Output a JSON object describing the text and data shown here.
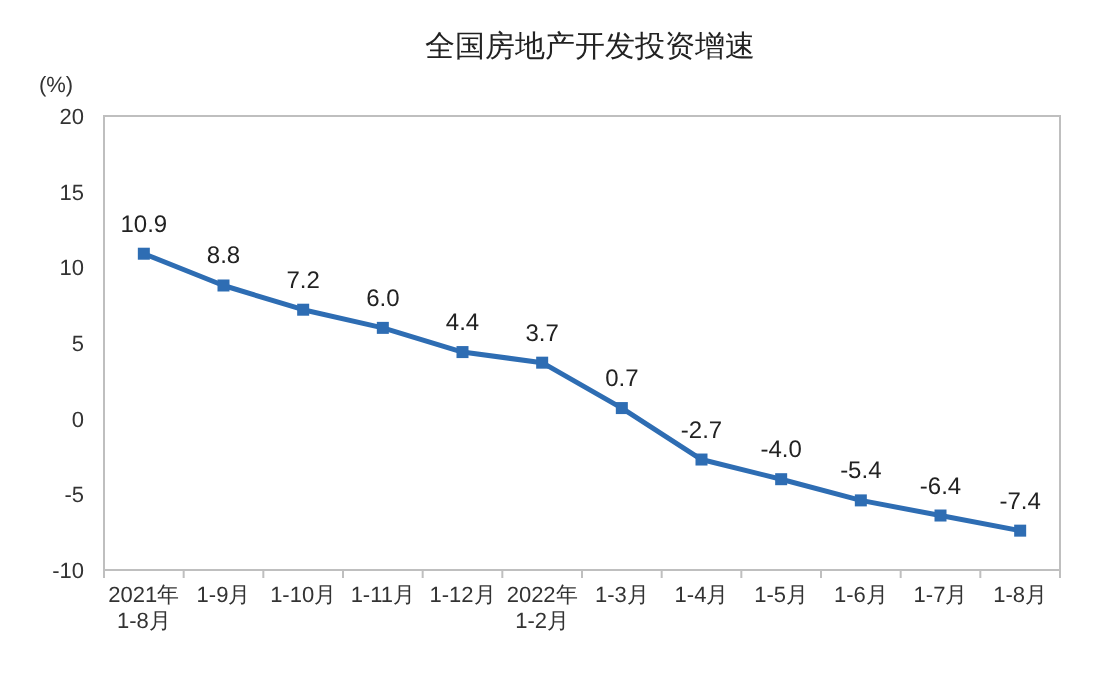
{
  "chart_data": {
    "type": "line",
    "title": "全国房地产开发投资增速",
    "ylabel": "(%)",
    "categories": [
      "2021年\n1-8月",
      "1-9月",
      "1-10月",
      "1-11月",
      "1-12月",
      "2022年\n1-2月",
      "1-3月",
      "1-4月",
      "1-5月",
      "1-6月",
      "1-7月",
      "1-8月"
    ],
    "series": [
      {
        "color": "#2e6db3",
        "values": [
          10.9,
          8.8,
          7.2,
          6.0,
          4.4,
          3.7,
          0.7,
          -2.7,
          -4.0,
          -5.4,
          -6.4,
          -7.4
        ],
        "value_labels": [
          "10.9",
          "8.8",
          "7.2",
          "6.0",
          "4.4",
          "3.7",
          "0.7",
          "-2.7",
          "-4.0",
          "-5.4",
          "-6.4",
          "-7.4"
        ]
      }
    ],
    "ylim": [
      -10,
      20
    ],
    "yticks": [
      -10,
      -5,
      0,
      5,
      10,
      15,
      20
    ],
    "marker": "square",
    "line_style": "solid"
  }
}
